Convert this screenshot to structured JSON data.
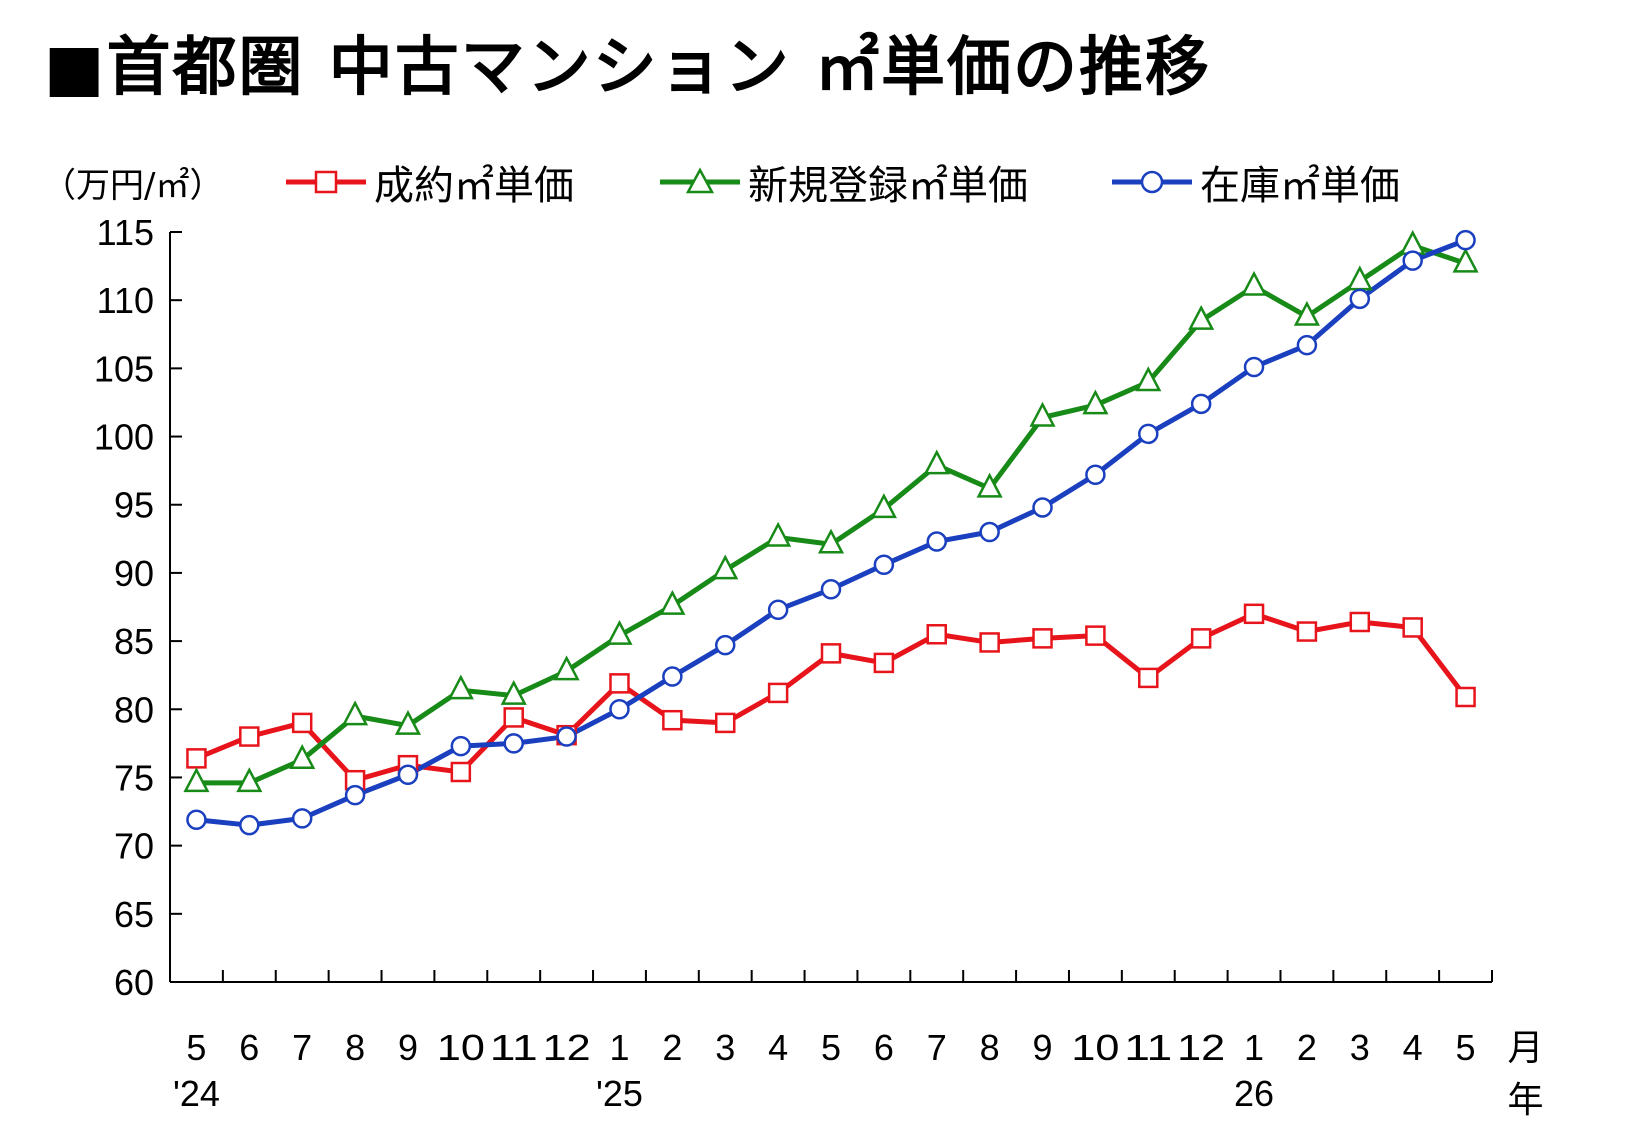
{
  "title": "■首都圏 中古マンション ㎡単価の推移",
  "unit_label": "（万円/㎡）",
  "colors": {
    "contract": "#e8141b",
    "new": "#178a17",
    "stock": "#1a3fbf"
  },
  "chart_data": {
    "type": "line",
    "title": "■首都圏 中古マンション ㎡単価の推移",
    "ylabel": "（万円/㎡）",
    "xlabel_month": "月",
    "xlabel_year": "年",
    "ylim": [
      60,
      115
    ],
    "yticks": [
      60,
      65,
      70,
      75,
      80,
      85,
      90,
      95,
      100,
      105,
      110,
      115
    ],
    "categories": [
      "5",
      "6",
      "7",
      "8",
      "9",
      "10",
      "11",
      "12",
      "1",
      "2",
      "3",
      "4",
      "5",
      "6",
      "7",
      "8",
      "9",
      "10",
      "11",
      "12",
      "1",
      "2",
      "3",
      "4",
      "5"
    ],
    "year_labels": [
      {
        "index": 0,
        "label": "'24"
      },
      {
        "index": 8,
        "label": "'25"
      },
      {
        "index": 20,
        "label": "26"
      }
    ],
    "legend_position": "top",
    "grid": false,
    "series": [
      {
        "name": "成約㎡単価",
        "color": "#e8141b",
        "marker": "square",
        "values": [
          76.4,
          78.0,
          79.0,
          74.8,
          75.9,
          75.4,
          79.4,
          78.1,
          81.9,
          79.2,
          79.0,
          81.2,
          84.1,
          83.4,
          85.5,
          84.9,
          85.2,
          85.4,
          82.3,
          85.2,
          87.0,
          85.7,
          86.4,
          86.0,
          80.9
        ]
      },
      {
        "name": "新規登録㎡単価",
        "color": "#178a17",
        "marker": "triangle",
        "values": [
          74.6,
          74.6,
          76.3,
          79.5,
          78.8,
          81.4,
          81.0,
          82.8,
          85.4,
          87.6,
          90.2,
          92.6,
          92.1,
          94.7,
          97.9,
          96.2,
          101.4,
          102.3,
          104.0,
          108.5,
          111.0,
          108.8,
          111.4,
          114.0,
          112.7
        ]
      },
      {
        "name": "在庫㎡単価",
        "color": "#1a3fbf",
        "marker": "circle",
        "values": [
          71.9,
          71.5,
          72.0,
          73.7,
          75.2,
          77.3,
          77.5,
          78.0,
          80.0,
          82.4,
          84.7,
          87.3,
          88.8,
          90.6,
          92.3,
          93.0,
          94.8,
          97.2,
          100.2,
          102.4,
          105.1,
          106.7,
          110.1,
          112.9,
          114.4
        ]
      }
    ]
  }
}
